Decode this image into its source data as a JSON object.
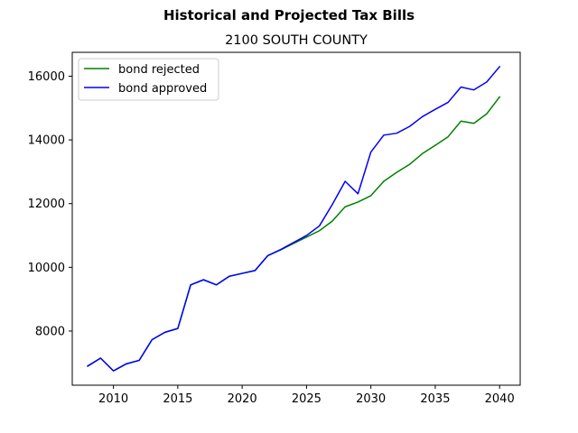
{
  "chart_data": {
    "type": "line",
    "suptitle": "Historical and Projected Tax Bills",
    "title": "2100 SOUTH COUNTY",
    "xlabel": "",
    "ylabel": "",
    "xlim": [
      2006.8,
      2041.6
    ],
    "ylim": [
      6300,
      16750
    ],
    "xticks": [
      2010,
      2015,
      2020,
      2025,
      2030,
      2035,
      2040
    ],
    "yticks": [
      8000,
      10000,
      12000,
      14000,
      16000
    ],
    "grid": false,
    "legend": "top-left",
    "x": [
      2008,
      2009,
      2010,
      2011,
      2012,
      2013,
      2014,
      2015,
      2016,
      2017,
      2018,
      2019,
      2020,
      2021,
      2022,
      2023,
      2024,
      2025,
      2026,
      2027,
      2028,
      2029,
      2030,
      2031,
      2032,
      2033,
      2034,
      2035,
      2036,
      2037,
      2038,
      2039,
      2040
    ],
    "series": [
      {
        "name": "bond rejected",
        "color": "#008000",
        "values": [
          6900,
          7150,
          6750,
          6970,
          7080,
          7730,
          7960,
          8080,
          9450,
          9610,
          9450,
          9720,
          9810,
          9900,
          10370,
          10550,
          10750,
          10950,
          11150,
          11450,
          11900,
          12050,
          12250,
          12700,
          12980,
          13230,
          13570,
          13830,
          14100,
          14590,
          14520,
          14820,
          15350
        ]
      },
      {
        "name": "bond approved",
        "color": "#0000ff",
        "values": [
          6900,
          7150,
          6750,
          6970,
          7080,
          7730,
          7960,
          8080,
          9450,
          9610,
          9450,
          9720,
          9810,
          9900,
          10370,
          10560,
          10780,
          11000,
          11300,
          11970,
          12700,
          12310,
          13620,
          14150,
          14210,
          14420,
          14730,
          14960,
          15180,
          15660,
          15570,
          15820,
          16300
        ]
      }
    ]
  }
}
